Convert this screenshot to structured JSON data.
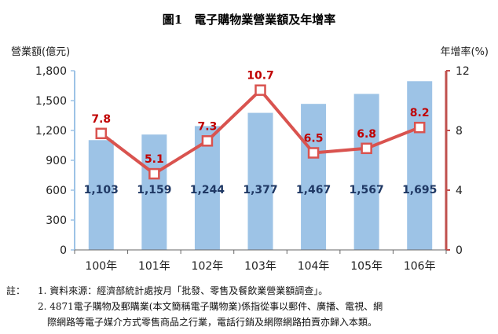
{
  "chart_data": {
    "type": "bar+line",
    "title": "圖1　電子購物業營業額及年增率",
    "categories": [
      "100年",
      "101年",
      "102年",
      "103年",
      "104年",
      "105年",
      "106年"
    ],
    "series": [
      {
        "name": "營業額(億元)",
        "type": "bar",
        "axis": "left",
        "values": [
          1103,
          1159,
          1244,
          1377,
          1467,
          1567,
          1695
        ],
        "labels": [
          "1,103",
          "1,159",
          "1,244",
          "1,377",
          "1,467",
          "1,567",
          "1,695"
        ],
        "color": "#9dc3e6"
      },
      {
        "name": "年增率(%)",
        "type": "line",
        "axis": "right",
        "values": [
          7.8,
          5.1,
          7.3,
          10.7,
          6.5,
          6.8,
          8.2
        ],
        "labels": [
          "7.8",
          "5.1",
          "7.3",
          "10.7",
          "6.5",
          "6.8",
          "8.2"
        ],
        "color": "#d9534f"
      }
    ],
    "ylabel_left": "營業額(億元)",
    "ylabel_right": "年增率(%)",
    "ylim_left": [
      0,
      1800
    ],
    "yticks_left": [
      "0",
      "300",
      "600",
      "900",
      "1,200",
      "1,500",
      "1,800"
    ],
    "ylim_right": [
      0,
      12
    ],
    "yticks_right": [
      "0",
      "4",
      "8",
      "12"
    ],
    "grid": false,
    "legend": "none"
  },
  "notes": {
    "prefix": "註：",
    "items": [
      "1. 資料來源：經濟部統計處按月「批發、零售及餐飲業營業額調查」。",
      "2. 4871電子購物及郵購業(本文簡稱電子購物業)係指從事以郵件、廣播、電視、網",
      "際網路等電子媒介方式零售商品之行業，電話行銷及網際網路拍賣亦歸入本類。"
    ]
  }
}
